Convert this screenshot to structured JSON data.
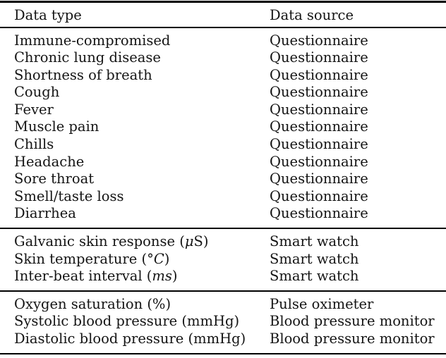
{
  "page": {
    "background_color": "#ffffff",
    "text_color": "#141414",
    "rule_color": "#000000"
  },
  "table": {
    "header": {
      "col1": "Data type",
      "col2": "Data source"
    },
    "sections": [
      {
        "rows": [
          {
            "pre": "Immune-compromised",
            "source": "Questionnaire"
          },
          {
            "pre": "Chronic lung disease",
            "source": "Questionnaire"
          },
          {
            "pre": "Shortness of breath",
            "source": "Questionnaire"
          },
          {
            "pre": "Cough",
            "source": "Questionnaire"
          },
          {
            "pre": "Fever",
            "source": "Questionnaire"
          },
          {
            "pre": "Muscle pain",
            "source": "Questionnaire"
          },
          {
            "pre": "Chills",
            "source": "Questionnaire"
          },
          {
            "pre": "Headache",
            "source": "Questionnaire"
          },
          {
            "pre": "Sore throat",
            "source": "Questionnaire"
          },
          {
            "pre": "Smell/taste loss",
            "source": "Questionnaire"
          },
          {
            "pre": "Diarrhea",
            "source": "Questionnaire"
          }
        ]
      },
      {
        "rows": [
          {
            "pre": "Galvanic skin response (",
            "em": "μ",
            "post": "S)",
            "source": "Smart watch"
          },
          {
            "pre": "Skin temperature (°",
            "em": "C",
            "post": ")",
            "source": "Smart watch"
          },
          {
            "pre": "Inter-beat interval (",
            "em": "ms",
            "post": ")",
            "source": "Smart watch"
          }
        ]
      },
      {
        "rows": [
          {
            "pre": "Oxygen saturation (%)",
            "source": "Pulse oximeter"
          },
          {
            "pre": "Systolic blood pressure (mmHg)",
            "source": "Blood pressure monitor"
          },
          {
            "pre": "Diastolic blood pressure (mmHg)",
            "source": "Blood pressure monitor"
          }
        ]
      }
    ]
  }
}
